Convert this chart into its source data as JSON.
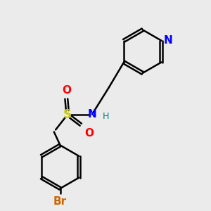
{
  "background_color": "#ebebeb",
  "atom_colors": {
    "N": "#0000ff",
    "S": "#cccc00",
    "O": "#ff0000",
    "Br": "#cc6600",
    "H": "#008080",
    "C": "#000000"
  },
  "line_color": "#000000",
  "line_width": 1.8,
  "font_size_atoms": 11,
  "font_size_small": 9,
  "xlim": [
    0,
    10
  ],
  "ylim": [
    0,
    10
  ]
}
